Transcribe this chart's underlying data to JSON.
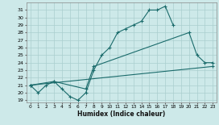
{
  "xlabel": "Humidex (Indice chaleur)",
  "bg_color": "#cde9e9",
  "grid_color": "#aacece",
  "line_color": "#1a6b6b",
  "xlim": [
    -0.5,
    23.5
  ],
  "ylim": [
    18.7,
    32.0
  ],
  "yticks": [
    19,
    20,
    21,
    22,
    23,
    24,
    25,
    26,
    27,
    28,
    29,
    30,
    31
  ],
  "xticks": [
    0,
    1,
    2,
    3,
    4,
    5,
    6,
    7,
    8,
    9,
    10,
    11,
    12,
    13,
    14,
    15,
    16,
    17,
    18,
    19,
    20,
    21,
    22,
    23
  ],
  "line1_x": [
    0,
    1,
    2,
    3,
    4,
    5,
    6,
    7,
    8,
    9,
    10,
    11,
    12,
    13,
    14,
    15,
    16,
    17,
    18
  ],
  "line1_y": [
    21.0,
    20.0,
    21.0,
    21.5,
    20.5,
    19.5,
    19.0,
    20.0,
    23.0,
    25.0,
    26.0,
    28.0,
    28.5,
    29.0,
    29.5,
    31.0,
    31.0,
    31.5,
    29.0
  ],
  "line2_x": [
    0,
    3,
    7,
    8,
    20,
    21,
    22,
    23
  ],
  "line2_y": [
    21.0,
    21.5,
    20.5,
    23.5,
    28.0,
    25.0,
    24.0,
    24.0
  ],
  "line3_x": [
    0,
    23
  ],
  "line3_y": [
    21.0,
    23.5
  ]
}
